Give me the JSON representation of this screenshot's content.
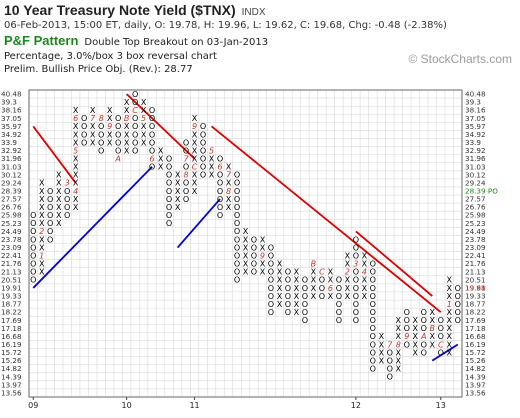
{
  "header": {
    "title": "10 Year Treasury Note Yield ($TNX)",
    "exchange": "INDX",
    "quote": "06-Feb-2013, 15:00 ET, daily, O: 19.78, H: 19.96, L: 19.62, C: 19.68, Chg: -0.48 (-2.38%)",
    "pattern_name": "P&F Pattern",
    "pattern_desc": "Double Top Breakout on 03-Jan-2013",
    "box_info": "Percentage, 3.0%/box 3 box reversal chart",
    "price_objective": "Prelim. Bullish Price Obj. (Rev.): 28.77",
    "logo_text": "© StockCharts.com"
  },
  "colors": {
    "x_mark": "#000000",
    "o_mark": "#000000",
    "month_mark": "#c0392b",
    "trend_up": "#0000dd",
    "trend_down": "#e00000",
    "current_price": "#1b8a1b",
    "grid": "#d9d9d9",
    "frame": "#666666"
  },
  "chart_data": {
    "type": "point-and-figure",
    "price_levels": [
      "40.48",
      "39.3",
      "38.16",
      "37.05",
      "35.97",
      "34.92",
      "33.9",
      "32.92",
      "31.96",
      "31.03",
      "30.12",
      "29.24",
      "28.39",
      "27.57",
      "26.76",
      "25.98",
      "25.23",
      "24.49",
      "23.78",
      "23.09",
      "22.41",
      "21.76",
      "21.13",
      "20.51",
      "19.91",
      "19.33",
      "18.77",
      "18.22",
      "17.69",
      "17.18",
      "16.68",
      "16.19",
      "15.72",
      "15.26",
      "14.82",
      "14.39",
      "13.97",
      "13.56"
    ],
    "last_price_label": "28.39 PO",
    "current_price_label": "19.68",
    "x_axis_labels": [
      {
        "label": "09",
        "column": 0.5
      },
      {
        "label": "10",
        "column": 11.5
      },
      {
        "label": "11",
        "column": 19.5
      },
      {
        "label": "12",
        "column": 38.5
      },
      {
        "label": "13",
        "column": 48.5
      }
    ],
    "columns": [
      {
        "type": "O",
        "top": "25.98",
        "bottom": "20.51",
        "marks": {}
      },
      {
        "type": "X",
        "top": "29.24",
        "bottom": "21.13",
        "marks": {
          "22.41": "1",
          "24.49": "2"
        }
      },
      {
        "type": "O",
        "top": "28.39",
        "bottom": "23.78",
        "marks": {}
      },
      {
        "type": "X",
        "top": "30.12",
        "bottom": "25.23",
        "marks": {}
      },
      {
        "type": "O",
        "top": "29.24",
        "bottom": "25.98",
        "marks": {
          "29.24": "3"
        }
      },
      {
        "type": "X",
        "top": "38.16",
        "bottom": "26.76",
        "marks": {
          "28.39": "4",
          "32.92": "5",
          "37.05": "6"
        }
      },
      {
        "type": "O",
        "top": "37.05",
        "bottom": "33.9",
        "marks": {}
      },
      {
        "type": "X",
        "top": "38.16",
        "bottom": "33.9",
        "marks": {
          "37.05": "7"
        }
      },
      {
        "type": "O",
        "top": "37.05",
        "bottom": "32.92",
        "marks": {
          "37.05": "8"
        }
      },
      {
        "type": "X",
        "top": "38.16",
        "bottom": "33.9",
        "marks": {
          "36.0": "9"
        }
      },
      {
        "type": "O",
        "top": "37.05",
        "bottom": "31.96",
        "marks": {
          "31.96": "A"
        }
      },
      {
        "type": "X",
        "top": "39.3",
        "bottom": "32.92",
        "marks": {
          "37.05": "B"
        }
      },
      {
        "type": "O",
        "top": "40.48",
        "bottom": "32.92",
        "marks": {
          "38.16": "C"
        }
      },
      {
        "type": "X",
        "top": "39.3",
        "bottom": "33.9",
        "marks": {
          "37.05": "5"
        }
      },
      {
        "type": "O",
        "top": "38.16",
        "bottom": "31.03",
        "marks": {
          "31.96": "6"
        }
      },
      {
        "type": "X",
        "top": "32.92",
        "bottom": "31.03",
        "marks": {}
      },
      {
        "type": "O",
        "top": "31.96",
        "bottom": "25.23",
        "marks": {}
      },
      {
        "type": "X",
        "top": "30.12",
        "bottom": "26.76",
        "marks": {}
      },
      {
        "type": "O",
        "top": "33.9",
        "bottom": "27.57",
        "marks": {
          "31.96": "7",
          "30.12": "8"
        }
      },
      {
        "type": "X",
        "top": "37.05",
        "bottom": "28.39",
        "marks": {
          "35.97": "9",
          "31.03": "C"
        }
      },
      {
        "type": "O",
        "top": "35.97",
        "bottom": "30.12",
        "marks": {}
      },
      {
        "type": "X",
        "top": "32.92",
        "bottom": "30.12",
        "marks": {
          "32.92": "5"
        }
      },
      {
        "type": "O",
        "top": "31.96",
        "bottom": "25.98",
        "marks": {
          "31.03": "6"
        }
      },
      {
        "type": "X",
        "top": "31.03",
        "bottom": "26.76",
        "marks": {
          "30.12": "7",
          "28.39": "8"
        }
      },
      {
        "type": "O",
        "top": "30.12",
        "bottom": "20.51",
        "marks": {}
      },
      {
        "type": "X",
        "top": "24.49",
        "bottom": "21.13",
        "marks": {}
      },
      {
        "type": "O",
        "top": "23.78",
        "bottom": "21.13",
        "marks": {}
      },
      {
        "type": "X",
        "top": "23.78",
        "bottom": "21.13",
        "marks": {
          "22.41": "9"
        }
      },
      {
        "type": "O",
        "top": "23.09",
        "bottom": "18.22",
        "marks": {}
      },
      {
        "type": "X",
        "top": "21.76",
        "bottom": "18.77",
        "marks": {}
      },
      {
        "type": "O",
        "top": "21.13",
        "bottom": "18.22",
        "marks": {}
      },
      {
        "type": "X",
        "top": "21.13",
        "bottom": "18.22",
        "marks": {}
      },
      {
        "type": "O",
        "top": "20.51",
        "bottom": "17.69",
        "marks": {}
      },
      {
        "type": "X",
        "top": "21.76",
        "bottom": "19.33",
        "marks": {
          "21.76": "B"
        }
      },
      {
        "type": "O",
        "top": "21.13",
        "bottom": "19.33",
        "marks": {
          "21.13": "C"
        }
      },
      {
        "type": "X",
        "top": "21.13",
        "bottom": "19.33",
        "marks": {
          "19.91": "6"
        }
      },
      {
        "type": "O",
        "top": "20.51",
        "bottom": "17.69",
        "marks": {}
      },
      {
        "type": "X",
        "top": "22.41",
        "bottom": "19.33",
        "marks": {
          "21.13": "2"
        }
      },
      {
        "type": "O",
        "top": "23.78",
        "bottom": "17.69",
        "marks": {
          "21.76": "3"
        }
      },
      {
        "type": "X",
        "top": "22.41",
        "bottom": "19.33",
        "marks": {
          "21.13": "4"
        }
      },
      {
        "type": "O",
        "top": "21.76",
        "bottom": "14.82",
        "marks": {}
      },
      {
        "type": "X",
        "top": "16.68",
        "bottom": "15.26",
        "marks": {}
      },
      {
        "type": "O",
        "top": "16.19",
        "bottom": "14.39",
        "marks": {
          "16.19": "7"
        }
      },
      {
        "type": "X",
        "top": "17.69",
        "bottom": "14.82",
        "marks": {
          "16.19": "8"
        }
      },
      {
        "type": "O",
        "top": "18.22",
        "bottom": "16.19",
        "marks": {
          "16.68": "9"
        }
      },
      {
        "type": "X",
        "top": "17.69",
        "bottom": "15.72",
        "marks": {}
      },
      {
        "type": "O",
        "top": "18.22",
        "bottom": "15.72",
        "marks": {
          "16.68": "A"
        }
      },
      {
        "type": "X",
        "top": "18.22",
        "bottom": "16.19",
        "marks": {
          "17.18": "B"
        }
      },
      {
        "type": "O",
        "top": "17.69",
        "bottom": "15.72",
        "marks": {
          "16.19": "C"
        }
      },
      {
        "type": "X",
        "top": "20.51",
        "bottom": "15.72",
        "marks": {
          "18.77": "1"
        }
      },
      {
        "type": "O",
        "top": "19.91",
        "bottom": "17.69",
        "marks": {}
      }
    ],
    "trend_lines": [
      {
        "kind": "down",
        "from": [
          0,
          "35.97"
        ],
        "to": [
          5,
          "29.24"
        ]
      },
      {
        "kind": "up",
        "from": [
          0,
          "19.91"
        ],
        "to": [
          14,
          "31.03"
        ]
      },
      {
        "kind": "down",
        "from": [
          11,
          "40.48"
        ],
        "to": [
          19,
          "31.96"
        ]
      },
      {
        "kind": "up",
        "from": [
          17,
          "23.09"
        ],
        "to": [
          22,
          "27.57"
        ]
      },
      {
        "kind": "down",
        "from": [
          21,
          "35.97"
        ],
        "to": [
          48,
          "18.22"
        ]
      },
      {
        "kind": "down",
        "from": [
          38,
          "24.49"
        ],
        "to": [
          47,
          "19.33"
        ]
      },
      {
        "kind": "up",
        "from": [
          47,
          "15.26"
        ],
        "to": [
          50,
          "16.19"
        ]
      }
    ]
  }
}
